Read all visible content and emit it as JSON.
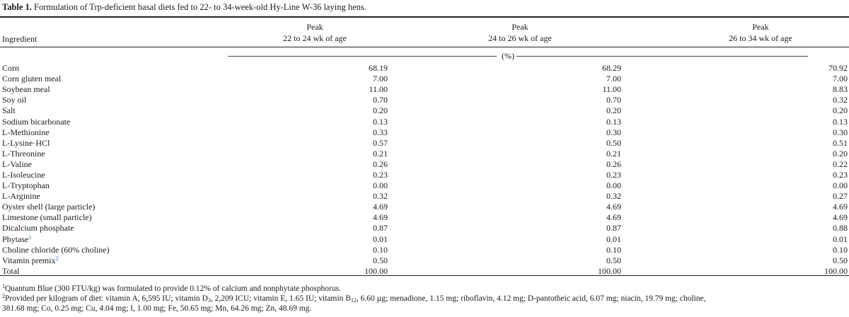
{
  "caption": {
    "label": "Table 1.",
    "text": " Formulation of Trp-deficient basal diets fed to 22- to 34-week-old Hy-Line W-36 laying hens."
  },
  "header": {
    "ingredient": "Ingredient",
    "col1_line1": "Peak",
    "col1_line2": "22 to 24 wk of age",
    "col2_line1": "Peak",
    "col2_line2": "24 to 26 wk of age",
    "col3_line1": "Peak",
    "col3_line2": "26 to 34 wk of age",
    "unit": "(%)"
  },
  "rows": [
    {
      "name": "Corn",
      "sup": "",
      "v1": "68.19",
      "v2": "68.29",
      "v3": "70.92"
    },
    {
      "name": "Corn gluten meal",
      "sup": "",
      "v1": "7.00",
      "v2": "7.00",
      "v3": "7.00"
    },
    {
      "name": "Soybean meal",
      "sup": "",
      "v1": "11.00",
      "v2": "11.00",
      "v3": "8.83"
    },
    {
      "name": "Soy oil",
      "sup": "",
      "v1": "0.70",
      "v2": "0.70",
      "v3": "0.32"
    },
    {
      "name": "Salt",
      "sup": "",
      "v1": "0.20",
      "v2": "0.20",
      "v3": "0.20"
    },
    {
      "name": "Sodium bicarbonate",
      "sup": "",
      "v1": "0.13",
      "v2": "0.13",
      "v3": "0.13"
    },
    {
      "name": "L-Methionine",
      "sup": "",
      "v1": "0.33",
      "v2": "0.30",
      "v3": "0.30"
    },
    {
      "name": "L-Lysine·HCl",
      "sup": "",
      "v1": "0.57",
      "v2": "0.50",
      "v3": "0.51"
    },
    {
      "name": "L-Threonine",
      "sup": "",
      "v1": "0.21",
      "v2": "0.21",
      "v3": "0.20"
    },
    {
      "name": "L-Valine",
      "sup": "",
      "v1": "0.26",
      "v2": "0.26",
      "v3": "0.22"
    },
    {
      "name": "L-Isoleucine",
      "sup": "",
      "v1": "0.23",
      "v2": "0.23",
      "v3": "0.23"
    },
    {
      "name": "L-Tryptophan",
      "sup": "",
      "v1": "0.00",
      "v2": "0.00",
      "v3": "0.00"
    },
    {
      "name": "L-Arginine",
      "sup": "",
      "v1": "0.32",
      "v2": "0.32",
      "v3": "0.27"
    },
    {
      "name": "Oyster shell (large particle)",
      "sup": "",
      "v1": "4.69",
      "v2": "4.69",
      "v3": "4.69"
    },
    {
      "name": "Limestone (small particle)",
      "sup": "",
      "v1": "4.69",
      "v2": "4.69",
      "v3": "4.69"
    },
    {
      "name": "Dicalcium phosphate",
      "sup": "",
      "v1": "0.87",
      "v2": "0.87",
      "v3": "0.88"
    },
    {
      "name": "Phytase",
      "sup": "1",
      "v1": "0.01",
      "v2": "0.01",
      "v3": "0.01"
    },
    {
      "name": "Choline chloride (60% choline)",
      "sup": "",
      "v1": "0.10",
      "v2": "0.10",
      "v3": "0.10"
    },
    {
      "name": "Vitamin premix",
      "sup": "2",
      "v1": "0.50",
      "v2": "0.50",
      "v3": "0.50"
    },
    {
      "name": "Total",
      "sup": "",
      "v1": "100.00",
      "v2": "100.00",
      "v3": "100.00"
    }
  ],
  "footnotes": {
    "f1_mark": "1",
    "f1_text": "Quantum Blue (300 FTU/kg) was formulated to provide 0.12% of calcium and nonphytate phosphorus.",
    "f2_mark": "2",
    "f2_a": "Provided per kilogram of diet: vitamin A, 6,595 IU; vitamin D",
    "f2_sub1": "3",
    "f2_b": ", 2,209 ICU; vitamin E, 1.65 IU; vitamin B",
    "f2_sub2": "12",
    "f2_c": ", 6.60 µg; menadione, 1.15 mg; riboflavin, 4.12 mg; D-pantotheic acid, 6.07 mg; niacin, 19.79 mg; choline,",
    "f2_line2": "381.68 mg; Co, 0.25 mg; Cu, 4.04 mg; I, 1.00 mg; Fe, 50.65 mg; Mn, 64.26 mg; Zn, 48.69 mg."
  }
}
